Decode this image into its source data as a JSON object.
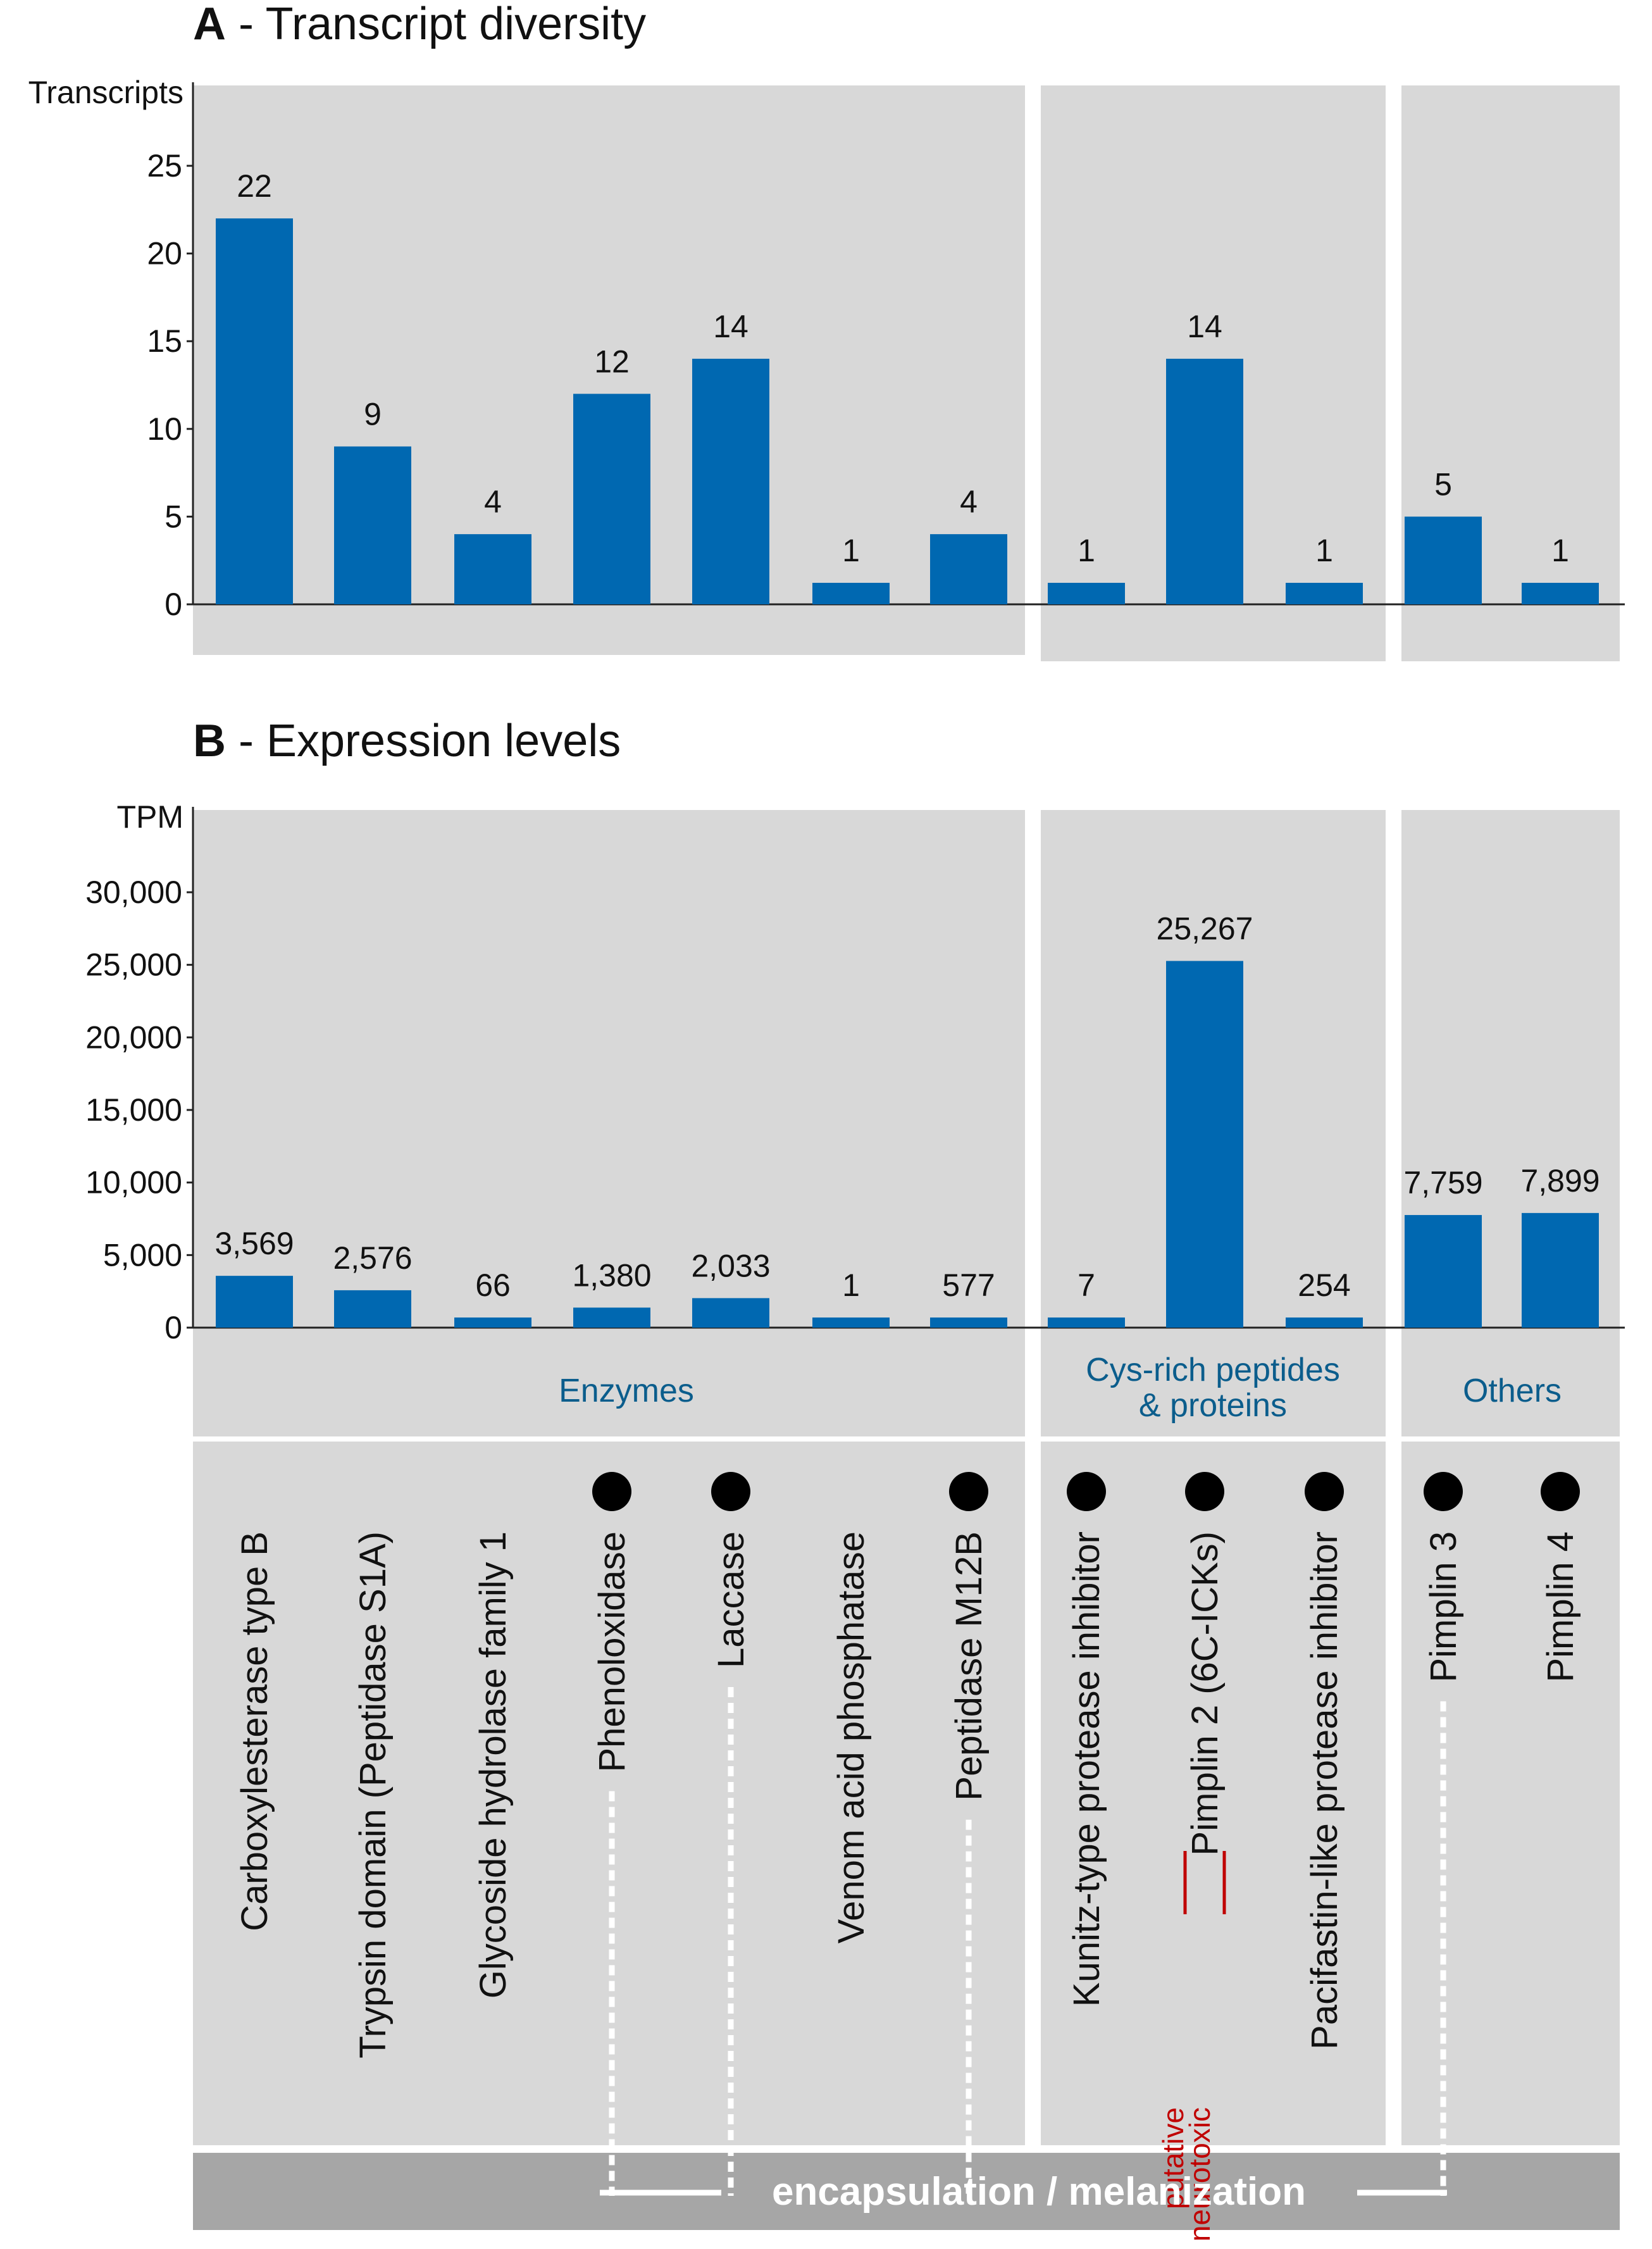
{
  "colors": {
    "bar": "#0068b1",
    "panel": "#d8d8d8",
    "group_label": "#0b5d8c",
    "neuro": "#c00000",
    "bottom_bar": "#a6a6a6",
    "dot": "#000000"
  },
  "groups": [
    {
      "label": "Enzymes",
      "span": [
        0,
        6
      ]
    },
    {
      "label": "Cys-rich peptides\n& proteins",
      "span": [
        7,
        9
      ]
    },
    {
      "label": "Others",
      "span": [
        10,
        11
      ]
    }
  ],
  "categories": [
    {
      "label": "Carboxylesterase type B",
      "dot": false,
      "dashed": false
    },
    {
      "label": "Trypsin domain (Peptidase S1A)",
      "dot": false,
      "dashed": false
    },
    {
      "label": "Glycoside hydrolase family 1",
      "dot": false,
      "dashed": false
    },
    {
      "label": "Phenoloxidase",
      "dot": true,
      "dashed": true
    },
    {
      "label": "Laccase",
      "dot": true,
      "dashed": true
    },
    {
      "label": "Venom acid phosphatase",
      "dot": false,
      "dashed": false
    },
    {
      "label": "Peptidase M12B",
      "dot": true,
      "dashed": true
    },
    {
      "label": "Kunitz-type protease inhibitor",
      "dot": true,
      "dashed": false
    },
    {
      "label": "Pimplin 2 (6C-ICKs)",
      "dot": true,
      "dashed": false
    },
    {
      "label": "Pacifastin-like protease inhibitor",
      "dot": true,
      "dashed": false
    },
    {
      "label": "Pimplin 3",
      "dot": true,
      "dashed": true
    },
    {
      "label": "Pimplin 4",
      "dot": true,
      "dashed": false
    }
  ],
  "neurotoxic_note": "putative\nneurotoxic",
  "bottom_label": "encapsulation / melanization",
  "chart_data": [
    {
      "type": "bar",
      "panel_letter": "A",
      "title": " - Transcript diversity",
      "ylabel": "Transcripts",
      "ylim": [
        0,
        27
      ],
      "yticks": [
        0,
        5,
        10,
        15,
        20,
        25
      ],
      "ytick_labels": [
        "0",
        "5",
        "10",
        "15",
        "20",
        "25"
      ],
      "categories": [
        "Carboxylesterase type B",
        "Trypsin domain (Peptidase S1A)",
        "Glycoside hydrolase family 1",
        "Phenoloxidase",
        "Laccase",
        "Venom acid phosphatase",
        "Peptidase M12B",
        "Kunitz-type protease inhibitor",
        "Pimplin 2 (6C-ICKs)",
        "Pacifastin-like protease inhibitor",
        "Pimplin 3",
        "Pimplin 4"
      ],
      "values": [
        22,
        9,
        4,
        12,
        14,
        1,
        4,
        1,
        14,
        1,
        5,
        1
      ],
      "value_labels": [
        "22",
        "9",
        "4",
        "12",
        "14",
        "1",
        "4",
        "1",
        "14",
        "1",
        "5",
        "1"
      ]
    },
    {
      "type": "bar",
      "panel_letter": "B",
      "title": " - Expression levels",
      "ylabel": "TPM",
      "ylim": [
        0,
        33000
      ],
      "yticks": [
        0,
        5000,
        10000,
        15000,
        20000,
        25000,
        30000
      ],
      "ytick_labels": [
        "0",
        "5,000",
        "10,000",
        "15,000",
        "20,000",
        "25,000",
        "30,000"
      ],
      "categories": [
        "Carboxylesterase type B",
        "Trypsin domain (Peptidase S1A)",
        "Glycoside hydrolase family 1",
        "Phenoloxidase",
        "Laccase",
        "Venom acid phosphatase",
        "Peptidase M12B",
        "Kunitz-type protease inhibitor",
        "Pimplin 2 (6C-ICKs)",
        "Pacifastin-like protease inhibitor",
        "Pimplin 3",
        "Pimplin 4"
      ],
      "values": [
        3569,
        2576,
        66,
        1380,
        2033,
        1,
        577,
        7,
        25267,
        254,
        7759,
        7899
      ],
      "value_labels": [
        "3,569",
        "2,576",
        "66",
        "1,380",
        "2,033",
        "1",
        "577",
        "7",
        "25,267",
        "254",
        "7,759",
        "7,899"
      ]
    }
  ]
}
